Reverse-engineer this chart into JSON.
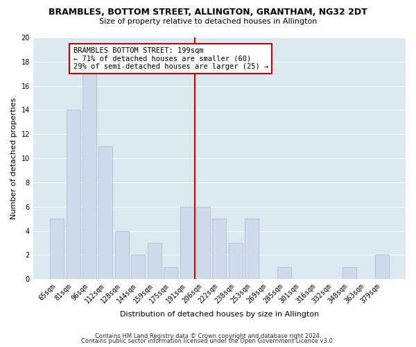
{
  "title": "BRAMBLES, BOTTOM STREET, ALLINGTON, GRANTHAM, NG32 2DT",
  "subtitle": "Size of property relative to detached houses in Allington",
  "xlabel": "Distribution of detached houses by size in Allington",
  "ylabel": "Number of detached properties",
  "footer_line1": "Contains HM Land Registry data © Crown copyright and database right 2024.",
  "footer_line2": "Contains public sector information licensed under the Open Government Licence v3.0.",
  "bar_labels": [
    "65sqm",
    "81sqm",
    "96sqm",
    "112sqm",
    "128sqm",
    "144sqm",
    "159sqm",
    "175sqm",
    "191sqm",
    "206sqm",
    "222sqm",
    "238sqm",
    "253sqm",
    "269sqm",
    "285sqm",
    "301sqm",
    "316sqm",
    "332sqm",
    "348sqm",
    "363sqm",
    "379sqm"
  ],
  "bar_values": [
    5,
    14,
    17,
    11,
    4,
    2,
    3,
    1,
    6,
    6,
    5,
    3,
    5,
    0,
    1,
    0,
    0,
    0,
    1,
    0,
    2
  ],
  "bar_color": "#ccdaeb",
  "bar_edge_color": "#afc4d8",
  "highlight_line_color": "#cc0000",
  "highlight_line_index": 8,
  "annotation_title": "BRAMBLES BOTTOM STREET: 199sqm",
  "annotation_line1": "← 71% of detached houses are smaller (60)",
  "annotation_line2": "29% of semi-detached houses are larger (25) →",
  "annotation_box_facecolor": "#ffffff",
  "annotation_box_edgecolor": "#cc0000",
  "ylim": [
    0,
    20
  ],
  "yticks": [
    0,
    2,
    4,
    6,
    8,
    10,
    12,
    14,
    16,
    18,
    20
  ],
  "background_color": "#ffffff",
  "plot_background_color": "#dce8f0",
  "grid_color": "#ffffff",
  "title_fontsize": 9,
  "subtitle_fontsize": 8,
  "xlabel_fontsize": 8,
  "ylabel_fontsize": 8,
  "tick_fontsize": 7,
  "footer_fontsize": 6
}
